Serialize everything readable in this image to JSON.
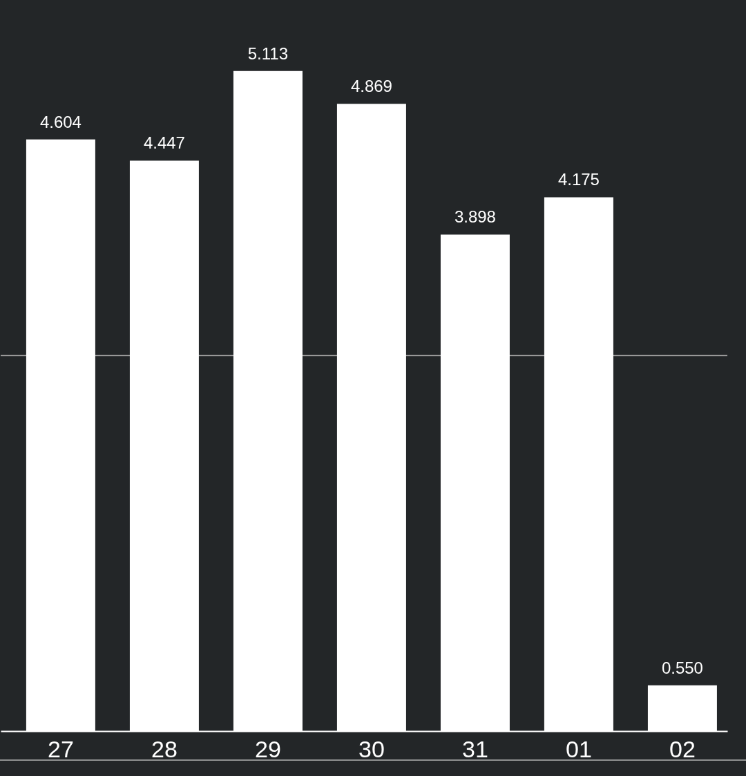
{
  "chart_data": {
    "type": "bar",
    "categories": [
      "27",
      "28",
      "29",
      "30",
      "31",
      "01",
      "02"
    ],
    "values": [
      4.604,
      4.447,
      5.113,
      4.869,
      3.898,
      4.175,
      0.55
    ],
    "value_labels": [
      "4.604",
      "4.447",
      "5.113",
      "4.869",
      "3.898",
      "4.175",
      "0.550"
    ],
    "color": "#ffffff",
    "ylim": [
      0.21,
      5.64
    ],
    "ref_lines": [
      {
        "axis": "y",
        "value": 3,
        "color": "#9b9b9b"
      }
    ],
    "tick_labels": "x"
  }
}
